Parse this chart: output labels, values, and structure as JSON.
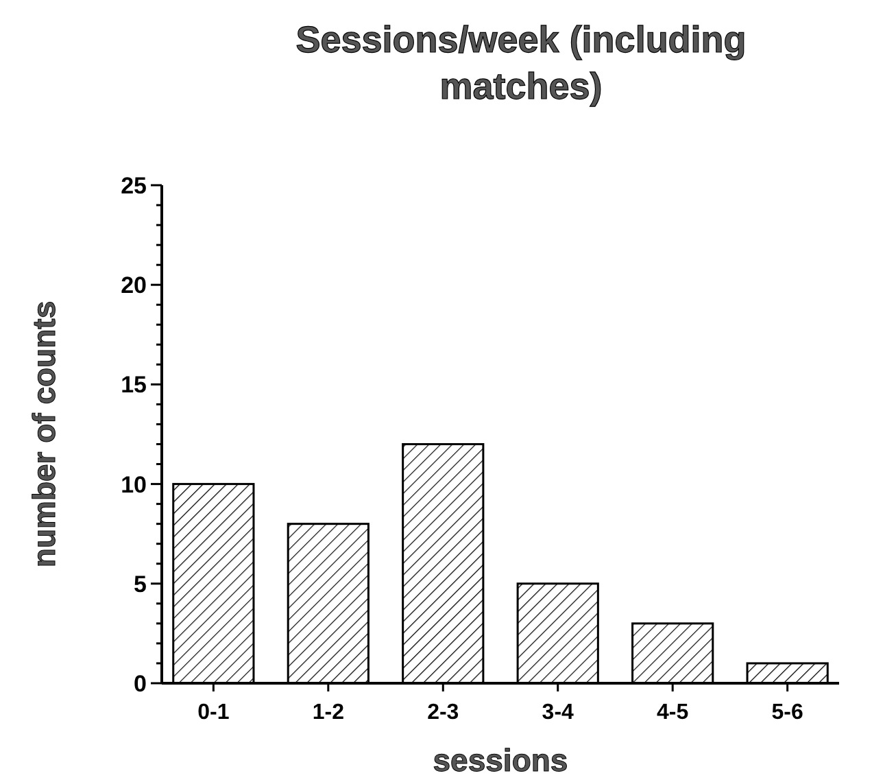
{
  "chart_data": {
    "type": "bar",
    "title": "Sessions/week (including matches)",
    "xlabel": "sessions",
    "ylabel": "number of counts",
    "categories": [
      "0-1",
      "1-2",
      "2-3",
      "3-4",
      "4-5",
      "5-6"
    ],
    "values": [
      10,
      8,
      12,
      5,
      3,
      1
    ],
    "color": "#000000",
    "ylim": [
      0,
      25
    ],
    "yticks": [
      0,
      {
        "value": 1,
        "label": null
      },
      {
        "value": 2,
        "label": null
      },
      {
        "value": 3,
        "label": null
      },
      {
        "value": 4,
        "label": null
      },
      5,
      {
        "value": 6,
        "label": null
      },
      {
        "value": 7,
        "label": null
      },
      {
        "value": 8,
        "label": null
      },
      {
        "value": 9,
        "label": null
      },
      10,
      {
        "value": 11,
        "label": null
      },
      {
        "value": 12,
        "label": null
      },
      {
        "value": 13,
        "label": null
      },
      {
        "value": 14,
        "label": null
      },
      15,
      {
        "value": 16,
        "label": null
      },
      {
        "value": 17,
        "label": null
      },
      {
        "value": 18,
        "label": null
      },
      {
        "value": 19,
        "label": null
      },
      20,
      {
        "value": 21,
        "label": null
      },
      {
        "value": 22,
        "label": null
      },
      {
        "value": 23,
        "label": null
      },
      {
        "value": 24,
        "label": null
      },
      25
    ],
    "grid": false
  }
}
